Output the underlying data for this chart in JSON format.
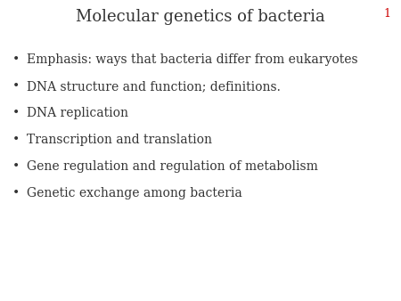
{
  "title": "Molecular genetics of bacteria",
  "title_fontsize": 13,
  "title_color": "#333333",
  "slide_number": "1",
  "slide_number_color": "#cc0000",
  "slide_number_fontsize": 9,
  "bullet_items": [
    "Emphasis: ways that bacteria differ from eukaryotes",
    "DNA structure and function; definitions.",
    "DNA replication",
    "Transcription and translation",
    "Gene regulation and regulation of metabolism",
    "Genetic exchange among bacteria"
  ],
  "bullet_fontsize": 10,
  "bullet_color": "#333333",
  "bullet_symbol": "•",
  "background_color": "#ffffff",
  "fig_width": 4.5,
  "fig_height": 3.38,
  "dpi": 100
}
